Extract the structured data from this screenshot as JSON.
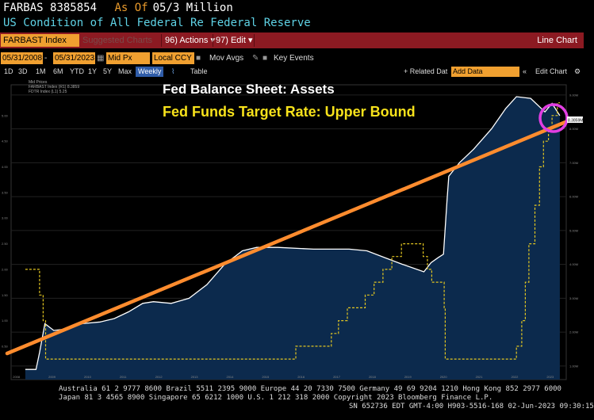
{
  "header": {
    "ticker": "FARBAS",
    "value": "8385854",
    "asof_label": "As Of",
    "asof_value": "05/3 Million",
    "subtitle": "US Condition of All Federal Re Federal Reserve"
  },
  "toolbar": {
    "ticker_field": "FARBAST Index",
    "suggested": "Suggested Charts",
    "actions": "96) Actions ▾",
    "edit": "97) Edit ▾",
    "chart_type": "Line Chart"
  },
  "controls": {
    "start_date": "05/31/2008",
    "end_date": "05/31/2023",
    "price_field": "Mid Px",
    "currency": "Local CCY",
    "mov_avgs": "Mov Avgs",
    "key_events": "Key Events",
    "ranges": [
      "1D",
      "3D",
      "1M",
      "6M",
      "YTD",
      "1Y",
      "5Y",
      "Max"
    ],
    "frequency": "Weekly",
    "table": "Table",
    "related": "+ Related Dat",
    "add_data_placeholder": "Add Data",
    "edit_chart": "Edit Chart"
  },
  "chart": {
    "title1": "Fed Balance Sheet: Assets",
    "title2": "Fed Funds Target Rate: Upper Bound",
    "legend_header": "Mid Prices",
    "legend_1": "FARBAST Index (R1) 8.3859",
    "legend_2": "FDTR Index (L1) 5.25",
    "colors": {
      "assets_line": "#ffffff",
      "fill": "#0c2a4d",
      "fed_rate": "#e2c521",
      "trend": "#ff8c2e",
      "highlight": "#e23ee2"
    }
  },
  "chart_data": {
    "type": "line",
    "series": [
      {
        "name": "FARBAST Index",
        "points": [
          [
            2008.4,
            0.9
          ],
          [
            2008.7,
            0.9
          ],
          [
            2008.8,
            1.4
          ],
          [
            2008.95,
            2.25
          ],
          [
            2009.2,
            2.05
          ],
          [
            2009.6,
            2.1
          ],
          [
            2010.0,
            2.25
          ],
          [
            2010.5,
            2.3
          ],
          [
            2010.9,
            2.4
          ],
          [
            2011.3,
            2.6
          ],
          [
            2011.7,
            2.85
          ],
          [
            2012.0,
            2.9
          ],
          [
            2012.5,
            2.85
          ],
          [
            2013.0,
            3.0
          ],
          [
            2013.5,
            3.4
          ],
          [
            2014.0,
            4.0
          ],
          [
            2014.5,
            4.4
          ],
          [
            2014.9,
            4.5
          ],
          [
            2015.5,
            4.5
          ],
          [
            2016.5,
            4.45
          ],
          [
            2017.5,
            4.45
          ],
          [
            2018.0,
            4.4
          ],
          [
            2018.5,
            4.2
          ],
          [
            2019.0,
            4.0
          ],
          [
            2019.6,
            3.78
          ],
          [
            2019.8,
            4.05
          ],
          [
            2020.0,
            4.2
          ],
          [
            2020.15,
            4.3
          ],
          [
            2020.25,
            5.9
          ],
          [
            2020.3,
            6.6
          ],
          [
            2020.6,
            7.0
          ],
          [
            2021.0,
            7.4
          ],
          [
            2021.5,
            8.0
          ],
          [
            2021.9,
            8.6
          ],
          [
            2022.2,
            8.95
          ],
          [
            2022.6,
            8.9
          ],
          [
            2023.0,
            8.5
          ],
          [
            2023.2,
            8.75
          ],
          [
            2023.42,
            8.39
          ]
        ]
      },
      {
        "name": "FDTR Index",
        "points": [
          [
            2008.4,
            2.0
          ],
          [
            2008.8,
            1.5
          ],
          [
            2008.9,
            1.0
          ],
          [
            2008.97,
            0.25
          ],
          [
            2015.95,
            0.25
          ],
          [
            2016.0,
            0.5
          ],
          [
            2016.96,
            0.5
          ],
          [
            2017.0,
            0.75
          ],
          [
            2017.2,
            1.0
          ],
          [
            2017.45,
            1.25
          ],
          [
            2017.95,
            1.5
          ],
          [
            2018.2,
            1.75
          ],
          [
            2018.45,
            2.0
          ],
          [
            2018.7,
            2.25
          ],
          [
            2018.97,
            2.5
          ],
          [
            2019.55,
            2.5
          ],
          [
            2019.58,
            2.25
          ],
          [
            2019.7,
            2.0
          ],
          [
            2019.82,
            1.75
          ],
          [
            2020.17,
            1.25
          ],
          [
            2020.2,
            0.25
          ],
          [
            2022.2,
            0.5
          ],
          [
            2022.35,
            1.0
          ],
          [
            2022.45,
            1.75
          ],
          [
            2022.55,
            2.5
          ],
          [
            2022.72,
            3.25
          ],
          [
            2022.85,
            4.0
          ],
          [
            2022.96,
            4.5
          ],
          [
            2023.1,
            4.75
          ],
          [
            2023.2,
            5.0
          ],
          [
            2023.35,
            5.25
          ],
          [
            2023.42,
            5.25
          ]
        ]
      }
    ],
    "x_ticks": [
      "2008",
      "2009",
      "2010",
      "2011",
      "2012",
      "2013",
      "2014",
      "2015",
      "2016",
      "2017",
      "2018",
      "2019",
      "2020",
      "2021",
      "2022",
      "2023"
    ],
    "y_left": [
      "5.00",
      "4.50",
      "4.00",
      "3.50",
      "3.00",
      "2.50",
      "2.00",
      "1.50",
      "1.00",
      "0.50"
    ],
    "y_right": [
      "9.00M",
      "8.00M",
      "7.00M",
      "6.00M",
      "5.00M",
      "4.00M",
      "3.00M",
      "2.00M",
      "1.00M"
    ],
    "last_value_label": "8.3859M"
  },
  "footer": {
    "line1": "Australia 61 2 9777 8600 Brazil 5511 2395 9000 Europe 44 20 7330 7500 Germany 49 69 9204 1210 Hong Kong 852 2977 6000",
    "line2": "Japan 81 3 4565 8900        Singapore 65 6212 1000       U.S. 1 212 318 2000           Copyright 2023 Bloomberg Finance L.P.",
    "line3": "SN 652736 EDT  GMT-4:00 H903-5516-168 02-Jun-2023 09:30:15"
  }
}
